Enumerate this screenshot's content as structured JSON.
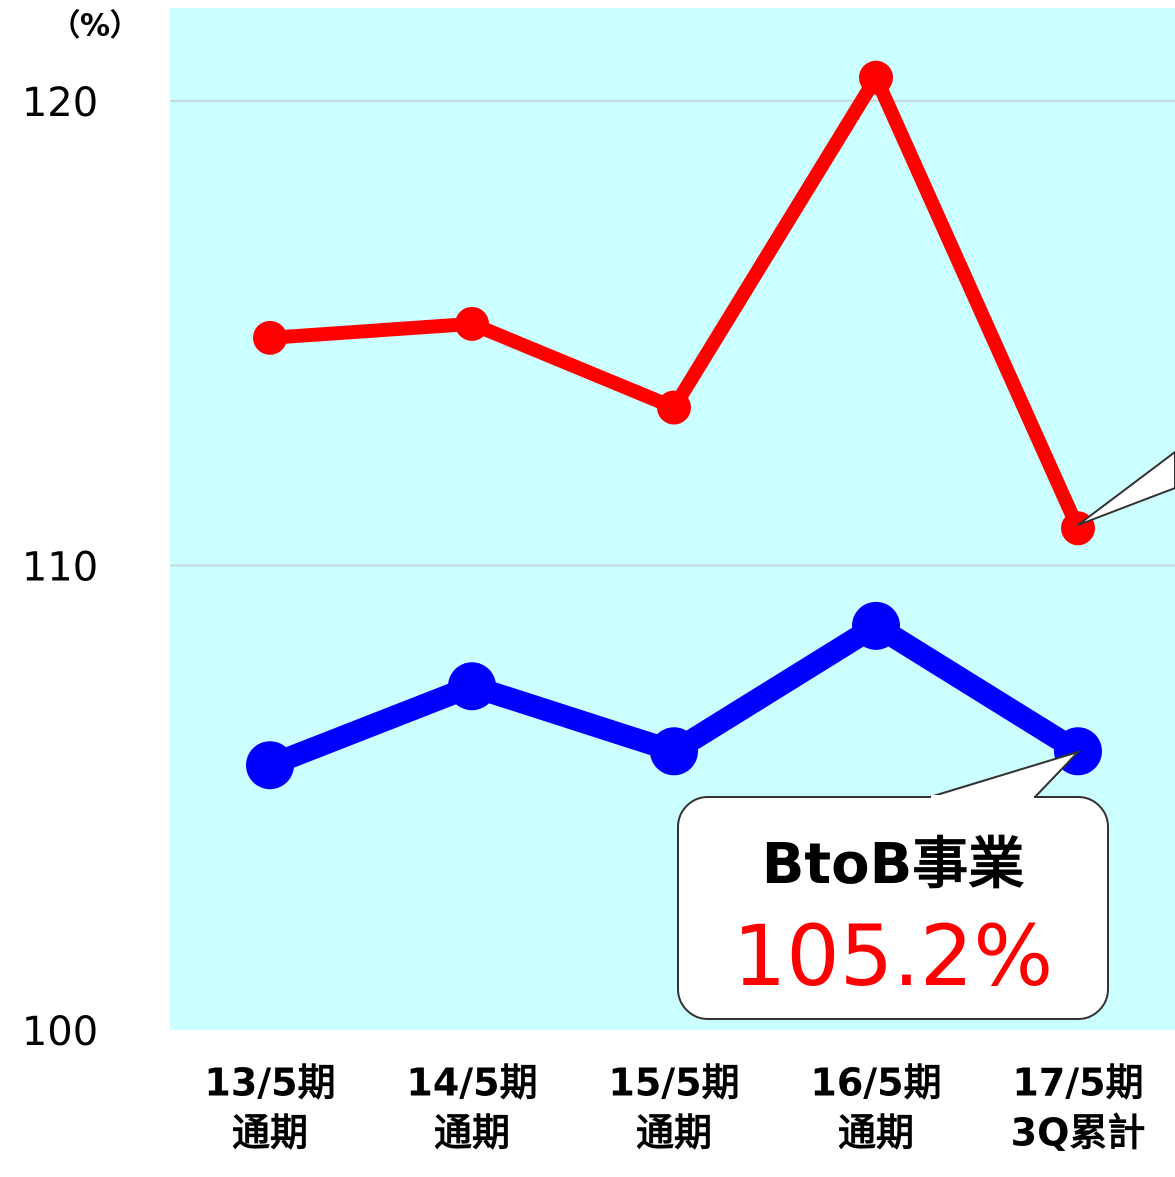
{
  "chart_data": {
    "type": "line",
    "y_label": "（%）",
    "categories": [
      [
        "13/5期",
        "通期"
      ],
      [
        "14/5期",
        "通期"
      ],
      [
        "15/5期",
        "通期"
      ],
      [
        "16/5期",
        "通期"
      ],
      [
        "17/5期",
        "3Q累計"
      ]
    ],
    "series": [
      {
        "color": "#ff0000",
        "values": [
          114.9,
          115.2,
          113.4,
          120.5,
          110.8
        ]
      },
      {
        "color": "#0000ff",
        "values": [
          105.7,
          107.4,
          106.0,
          108.7,
          106.0
        ]
      }
    ],
    "ylim": [
      100,
      122
    ],
    "yticks": [
      100,
      110,
      120
    ],
    "grid": true,
    "background": "#ccffff",
    "annotation": {
      "text": "BtoB事業",
      "value_text": "105.2%",
      "color": "#ff0000"
    }
  }
}
